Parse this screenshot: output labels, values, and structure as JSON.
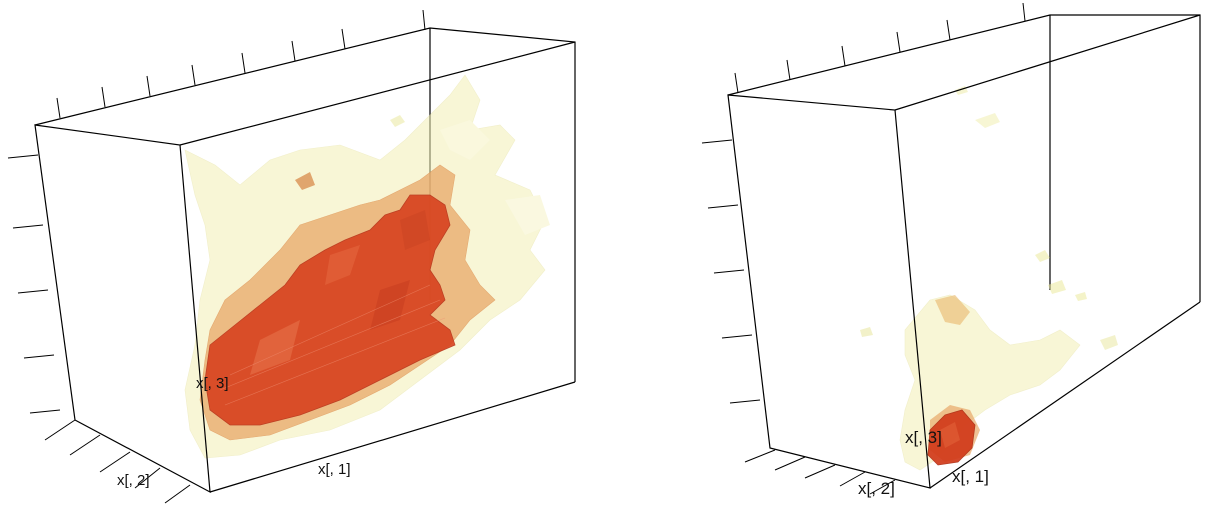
{
  "panels": [
    {
      "id": "left",
      "axis_labels": {
        "x1": "x[, 1]",
        "x2": "x[, 2]",
        "x3": "x[, 3]"
      }
    },
    {
      "id": "right",
      "axis_labels": {
        "x1": "x[, 1]",
        "x2": "x[, 2]",
        "x3": "x[, 3]"
      }
    }
  ],
  "colors": {
    "contour_inner": "#d9411e",
    "contour_middle": "#e8a060",
    "contour_outer": "#f2f0b0"
  }
}
